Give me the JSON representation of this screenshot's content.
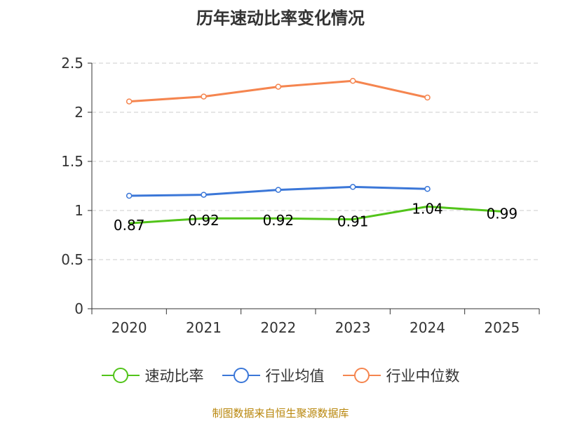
{
  "chart_data": {
    "type": "line",
    "title": "历年速动比率变化情况",
    "categories": [
      "2020",
      "2021",
      "2022",
      "2023",
      "2024",
      "2025"
    ],
    "ylim": [
      0,
      2.5
    ],
    "yticks": [
      0,
      0.5,
      1,
      1.5,
      2,
      2.5
    ],
    "ytick_labels": [
      "0",
      "0.5",
      "1",
      "1.5",
      "2",
      "2.5"
    ],
    "grid": true,
    "legend_position": "bottom-center",
    "series": [
      {
        "name": "速动比率",
        "color": "#52c41a",
        "values": [
          0.87,
          0.92,
          0.92,
          0.91,
          1.04,
          0.99
        ],
        "data_labels": [
          "0.87",
          "0.92",
          "0.92",
          "0.91",
          "1.04",
          "0.99"
        ]
      },
      {
        "name": "行业均值",
        "color": "#3b77d8",
        "values": [
          1.15,
          1.16,
          1.21,
          1.24,
          1.22,
          null
        ]
      },
      {
        "name": "行业中位数",
        "color": "#f5854f",
        "values": [
          2.11,
          2.16,
          2.26,
          2.32,
          2.15,
          null
        ]
      }
    ],
    "source": "制图数据来自恒生聚源数据库"
  }
}
